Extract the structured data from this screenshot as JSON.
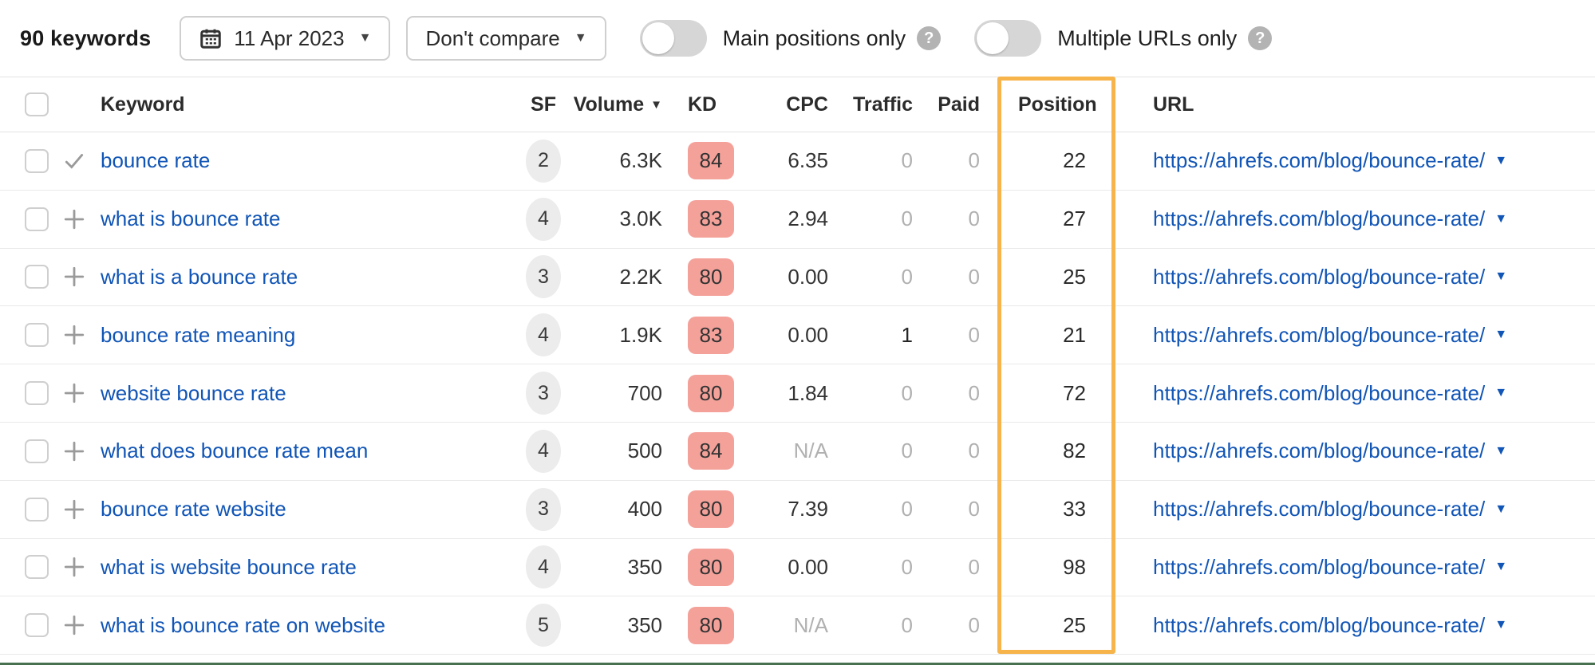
{
  "toolbar": {
    "keywords_count": "90 keywords",
    "date_label": "11 Apr 2023",
    "compare_label": "Don't compare",
    "main_positions_label": "Main positions only",
    "multiple_urls_label": "Multiple URLs only"
  },
  "table": {
    "headers": {
      "keyword": "Keyword",
      "sf": "SF",
      "volume": "Volume",
      "kd": "KD",
      "cpc": "CPC",
      "traffic": "Traffic",
      "paid": "Paid",
      "position": "Position",
      "url": "URL"
    },
    "rows": [
      {
        "icon": "check",
        "keyword": "bounce rate",
        "sf": "2",
        "volume": "6.3K",
        "kd": "84",
        "cpc": "6.35",
        "traffic": "0",
        "paid": "0",
        "position": "22",
        "url": "https://ahrefs.com/blog/bounce-rate/"
      },
      {
        "icon": "plus",
        "keyword": "what is bounce rate",
        "sf": "4",
        "volume": "3.0K",
        "kd": "83",
        "cpc": "2.94",
        "traffic": "0",
        "paid": "0",
        "position": "27",
        "url": "https://ahrefs.com/blog/bounce-rate/"
      },
      {
        "icon": "plus",
        "keyword": "what is a bounce rate",
        "sf": "3",
        "volume": "2.2K",
        "kd": "80",
        "cpc": "0.00",
        "traffic": "0",
        "paid": "0",
        "position": "25",
        "url": "https://ahrefs.com/blog/bounce-rate/"
      },
      {
        "icon": "plus",
        "keyword": "bounce rate meaning",
        "sf": "4",
        "volume": "1.9K",
        "kd": "83",
        "cpc": "0.00",
        "traffic": "1",
        "paid": "0",
        "position": "21",
        "url": "https://ahrefs.com/blog/bounce-rate/"
      },
      {
        "icon": "plus",
        "keyword": "website bounce rate",
        "sf": "3",
        "volume": "700",
        "kd": "80",
        "cpc": "1.84",
        "traffic": "0",
        "paid": "0",
        "position": "72",
        "url": "https://ahrefs.com/blog/bounce-rate/"
      },
      {
        "icon": "plus",
        "keyword": "what does bounce rate mean",
        "sf": "4",
        "volume": "500",
        "kd": "84",
        "cpc": "N/A",
        "traffic": "0",
        "paid": "0",
        "position": "82",
        "url": "https://ahrefs.com/blog/bounce-rate/"
      },
      {
        "icon": "plus",
        "keyword": "bounce rate website",
        "sf": "3",
        "volume": "400",
        "kd": "80",
        "cpc": "7.39",
        "traffic": "0",
        "paid": "0",
        "position": "33",
        "url": "https://ahrefs.com/blog/bounce-rate/"
      },
      {
        "icon": "plus",
        "keyword": "what is website bounce rate",
        "sf": "4",
        "volume": "350",
        "kd": "80",
        "cpc": "0.00",
        "traffic": "0",
        "paid": "0",
        "position": "98",
        "url": "https://ahrefs.com/blog/bounce-rate/"
      },
      {
        "icon": "plus",
        "keyword": "what is bounce rate on website",
        "sf": "5",
        "volume": "350",
        "kd": "80",
        "cpc": "N/A",
        "traffic": "0",
        "paid": "0",
        "position": "25",
        "url": "https://ahrefs.com/blog/bounce-rate/"
      }
    ]
  },
  "colors": {
    "link_blue": "#1155b6",
    "kd_badge_bg": "#f4a19a",
    "sf_badge_bg": "#ececec",
    "highlight_orange": "#f6b44a",
    "muted_gray": "#b0b0b0",
    "bottom_line_green": "#47714f"
  }
}
